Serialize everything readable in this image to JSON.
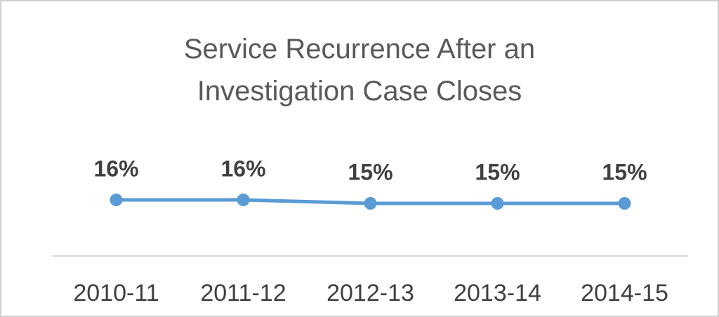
{
  "chart_data": {
    "type": "line",
    "title": "Service Recurrence After an Investigation Case Closes",
    "categories": [
      "2010-11",
      "2011-12",
      "2012-13",
      "2013-14",
      "2014-15"
    ],
    "values": [
      16,
      16,
      15,
      15,
      15
    ],
    "value_labels": [
      "16%",
      "16%",
      "15%",
      "15%",
      "15%"
    ],
    "color": "#5b9bd5"
  }
}
